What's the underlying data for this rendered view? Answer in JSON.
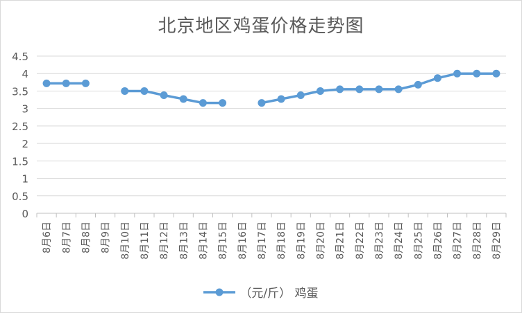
{
  "chart_data": {
    "type": "line",
    "title": "北京地区鸡蛋价格走势图",
    "categories": [
      "8月6日",
      "8月7日",
      "8月8日",
      "8月9日",
      "8月10日",
      "8月11日",
      "8月12日",
      "8月13日",
      "8月14日",
      "8月15日",
      "8月16日",
      "8月17日",
      "8月18日",
      "8月19日",
      "8月20日",
      "8月21日",
      "8月22日",
      "8月23日",
      "8月24日",
      "8月25日",
      "8月26日",
      "8月27日",
      "8月28日",
      "8月29日"
    ],
    "series": [
      {
        "name": "（元/斤） 鸡蛋",
        "color": "#5b9bd5",
        "values": [
          3.72,
          3.72,
          3.72,
          null,
          3.5,
          3.5,
          3.38,
          3.27,
          3.16,
          3.16,
          null,
          3.16,
          3.27,
          3.38,
          3.5,
          3.55,
          3.55,
          3.55,
          3.55,
          3.68,
          3.87,
          4.0,
          4.0,
          4.0
        ]
      }
    ],
    "ylim": [
      0,
      4.5
    ],
    "yticks": [
      "0",
      "0.5",
      "1",
      "1.5",
      "2",
      "2.5",
      "3",
      "3.5",
      "4",
      "4.5"
    ],
    "xlabel": "",
    "ylabel": "",
    "grid": true,
    "legend": "bottom"
  }
}
